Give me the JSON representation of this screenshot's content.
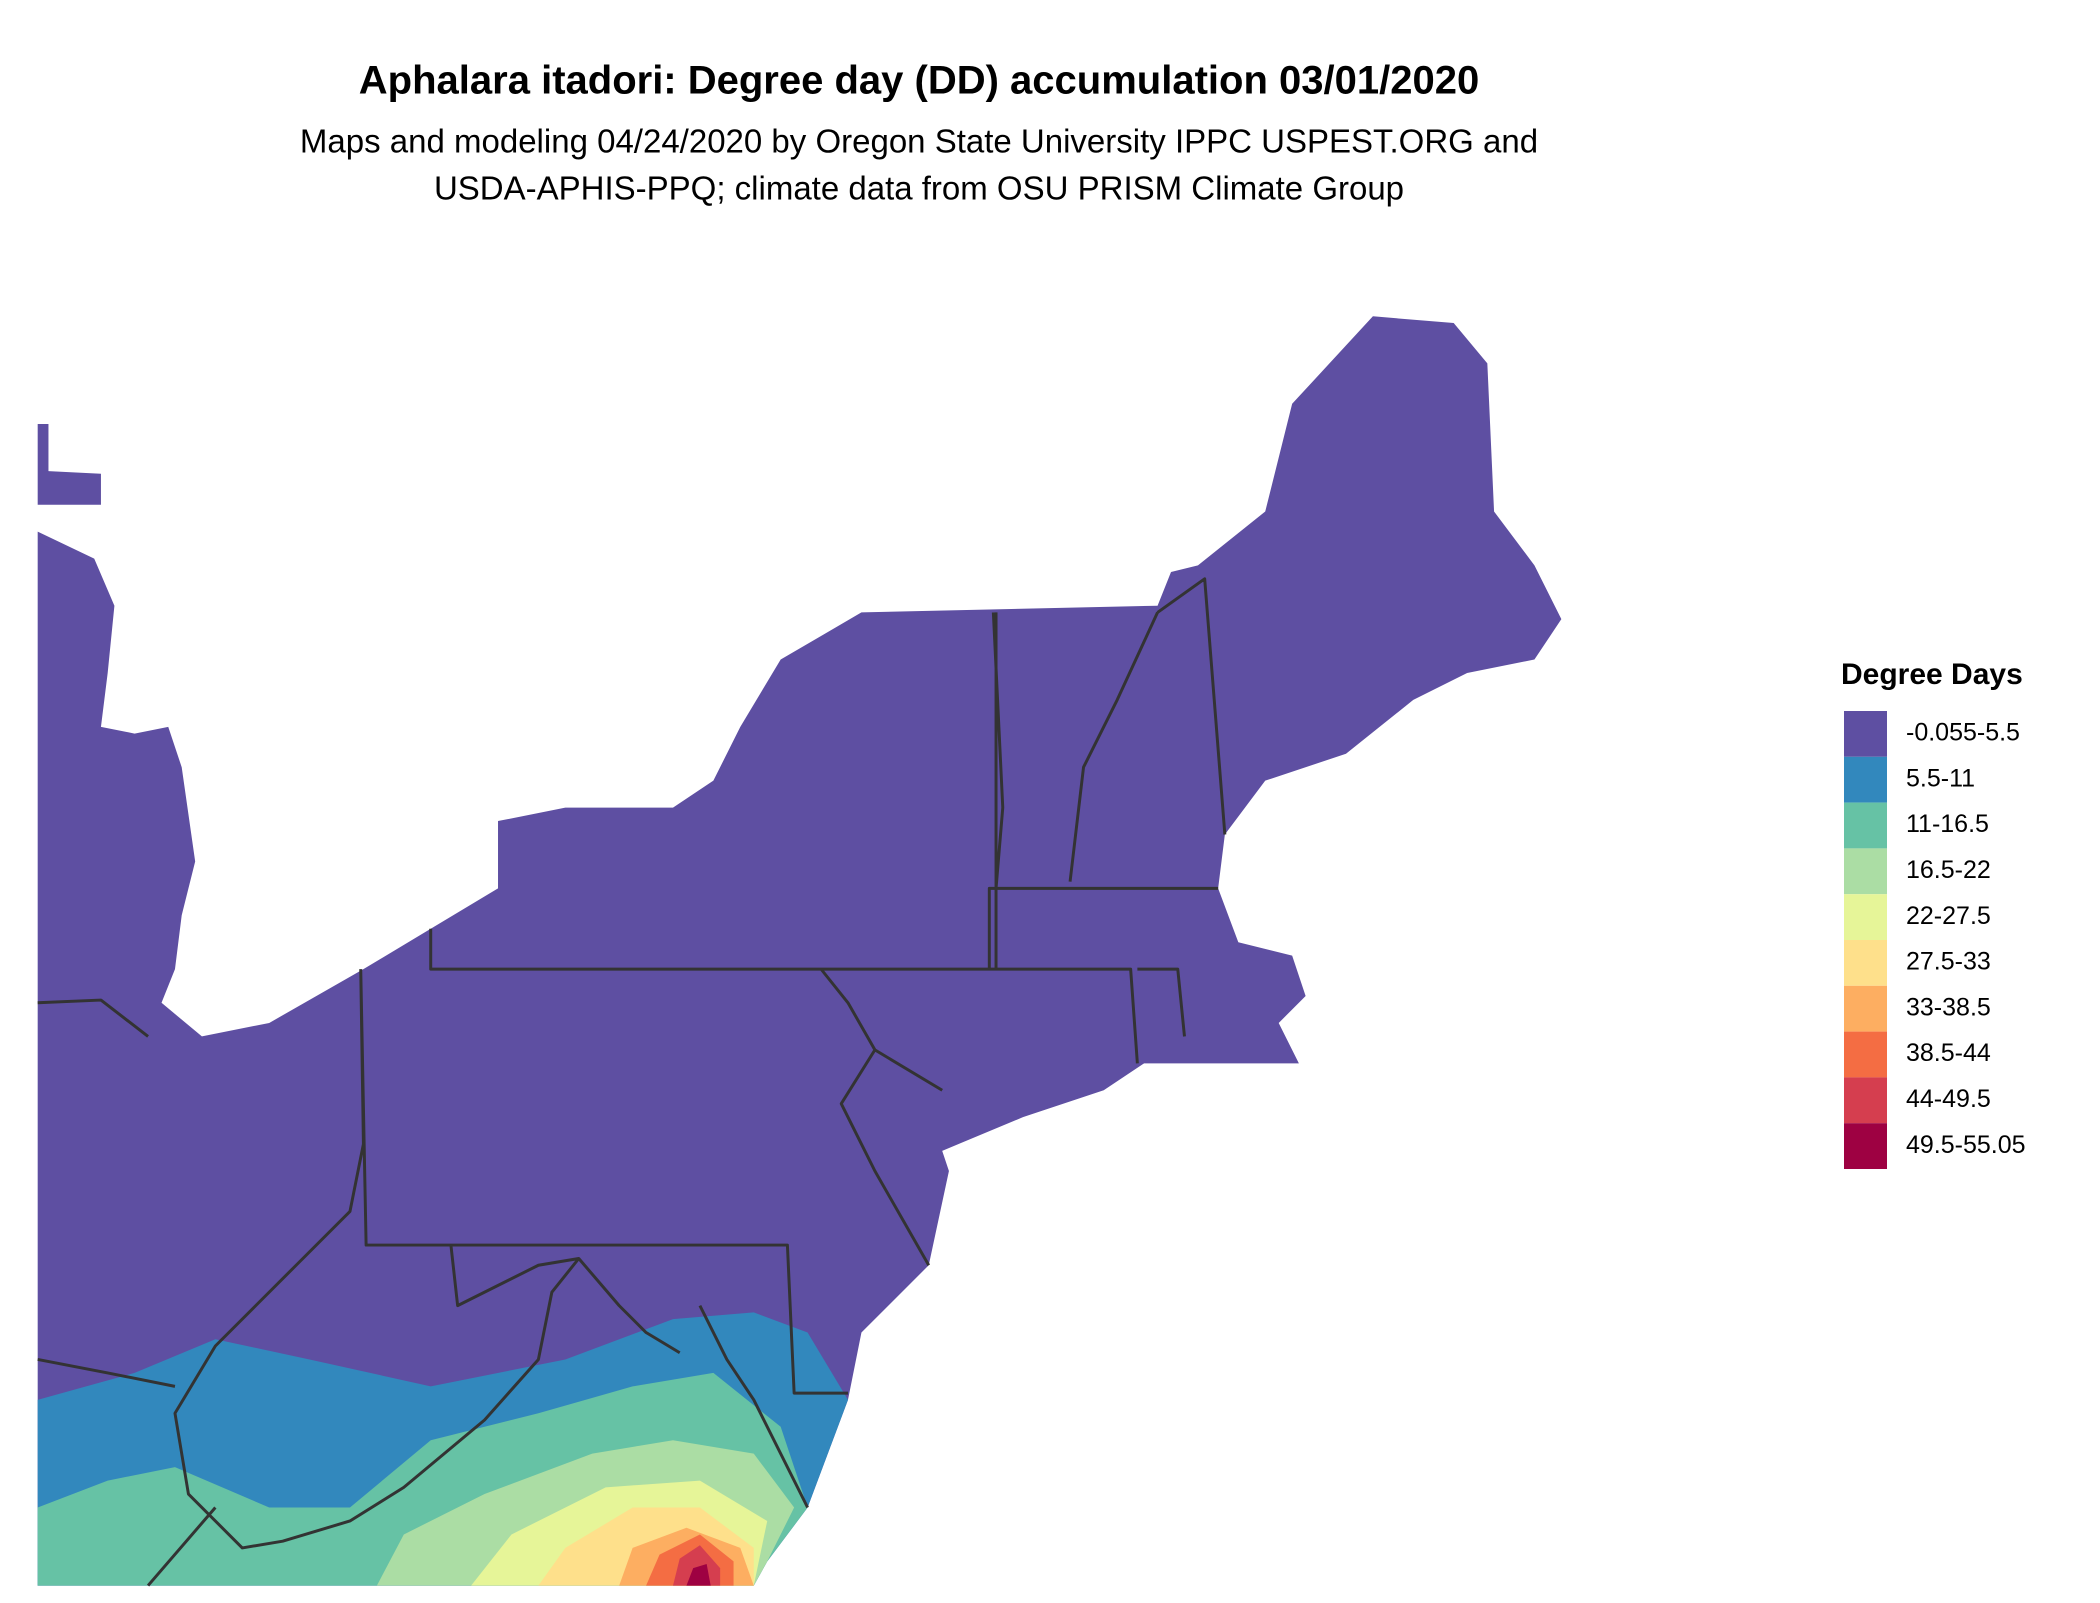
{
  "header": {
    "title": "Aphalara itadori: Degree day (DD) accumulation 03/01/2020",
    "subtitle": [
      "Maps and modeling 04/24/2020 by Oregon State University IPPC USPEST.ORG and",
      "USDA-APHIS-PPQ; climate data from OSU PRISM Climate Group"
    ]
  },
  "legend": {
    "title": "Degree Days",
    "items": [
      {
        "label": "-0.055-5.5",
        "color": "#5e4fa2"
      },
      {
        "label": "5.5-11",
        "color": "#3288bd"
      },
      {
        "label": "11-16.5",
        "color": "#66c2a5"
      },
      {
        "label": "16.5-22",
        "color": "#abdda4"
      },
      {
        "label": "22-27.5",
        "color": "#e6f598"
      },
      {
        "label": "27.5-33",
        "color": "#fee08b"
      },
      {
        "label": "33-38.5",
        "color": "#fdae61"
      },
      {
        "label": "38.5-44",
        "color": "#f46d43"
      },
      {
        "label": "44-49.5",
        "color": "#d53e4f"
      },
      {
        "label": "49.5-55.05",
        "color": "#9e0142"
      }
    ]
  }
}
